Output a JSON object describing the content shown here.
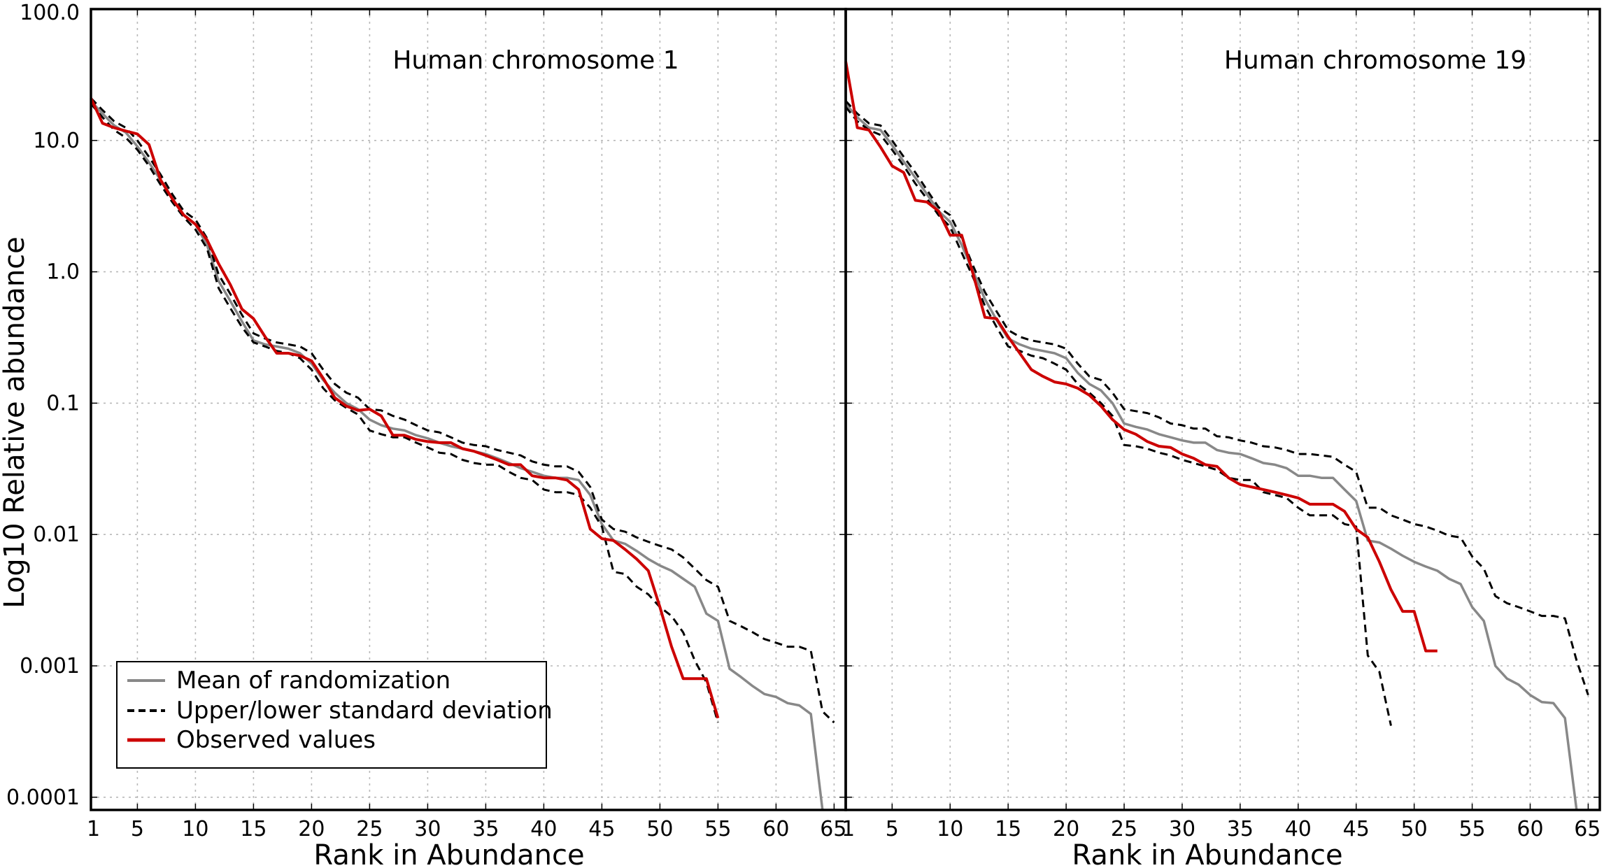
{
  "chart_data": [
    {
      "type": "line",
      "title": "Human chromosome 1",
      "xlabel": "Rank in Abundance",
      "ylabel": "Log10 Relative abundance",
      "xlim": [
        1,
        66
      ],
      "ylim": [
        8e-05,
        100
      ],
      "yscale": "log",
      "grid": true,
      "x_ticks": [
        1,
        5,
        10,
        15,
        20,
        25,
        30,
        35,
        40,
        45,
        50,
        55,
        60,
        65
      ],
      "y_ticks": [
        "0.0001",
        "0.001",
        "0.01",
        "0.1",
        "1.0",
        "10.0",
        "100.0"
      ],
      "y_tick_values": [
        0.0001,
        0.001,
        0.01,
        0.1,
        1,
        10,
        100
      ],
      "legend_position": "lower-left",
      "series": [
        {
          "name": "Mean of randomization",
          "color": "#888888",
          "style": "solid",
          "x": [
            1,
            2,
            3,
            4,
            5,
            6,
            7,
            8,
            9,
            10,
            11,
            12,
            13,
            14,
            15,
            16,
            17,
            18,
            19,
            20,
            21,
            22,
            23,
            24,
            25,
            26,
            27,
            28,
            29,
            30,
            31,
            32,
            33,
            34,
            35,
            36,
            37,
            38,
            39,
            40,
            41,
            42,
            43,
            44,
            45,
            46,
            47,
            48,
            49,
            50,
            51,
            52,
            53,
            54,
            55,
            56,
            57,
            58,
            59,
            60,
            61,
            62,
            63,
            64,
            65
          ],
          "values": [
            20,
            16,
            13,
            11.5,
            9,
            6.8,
            5,
            3.6,
            2.7,
            2.3,
            1.6,
            0.85,
            0.6,
            0.42,
            0.3,
            0.28,
            0.27,
            0.26,
            0.24,
            0.2,
            0.15,
            0.12,
            0.1,
            0.09,
            0.075,
            0.068,
            0.064,
            0.062,
            0.057,
            0.054,
            0.05,
            0.047,
            0.045,
            0.043,
            0.041,
            0.038,
            0.035,
            0.032,
            0.03,
            0.028,
            0.027,
            0.027,
            0.026,
            0.02,
            0.012,
            0.009,
            0.0085,
            0.0075,
            0.0065,
            0.0058,
            0.0053,
            0.0046,
            0.004,
            0.0025,
            0.0022,
            0.00095,
            0.00082,
            0.0007,
            0.00061,
            0.00058,
            0.00052,
            0.0005,
            0.00043,
            8e-05,
            null
          ]
        },
        {
          "name": "Upper/lower standard deviation",
          "color": "#000000",
          "style": "dashed",
          "x": [
            1,
            2,
            3,
            4,
            5,
            6,
            7,
            8,
            9,
            10,
            11,
            12,
            13,
            14,
            15,
            16,
            17,
            18,
            19,
            20,
            21,
            22,
            23,
            24,
            25,
            26,
            27,
            28,
            29,
            30,
            31,
            32,
            33,
            34,
            35,
            36,
            37,
            38,
            39,
            40,
            41,
            42,
            43,
            44,
            45,
            46,
            47,
            48,
            49,
            50,
            51,
            52,
            53,
            54,
            55,
            56,
            57,
            58,
            59,
            60,
            61,
            62,
            63,
            64,
            65
          ],
          "values": [
            21,
            17,
            14,
            12.5,
            10,
            7.5,
            5.5,
            3.9,
            2.9,
            2.5,
            1.8,
            0.95,
            0.68,
            0.47,
            0.34,
            0.31,
            0.29,
            0.28,
            0.27,
            0.24,
            0.18,
            0.14,
            0.12,
            0.11,
            0.09,
            0.088,
            0.08,
            0.075,
            0.068,
            0.062,
            0.06,
            0.055,
            0.05,
            0.048,
            0.047,
            0.044,
            0.042,
            0.04,
            0.036,
            0.034,
            0.033,
            0.033,
            0.03,
            0.023,
            0.013,
            0.011,
            0.0105,
            0.0095,
            0.0088,
            0.0082,
            0.0077,
            0.0067,
            0.0055,
            0.0045,
            0.004,
            0.0022,
            0.002,
            0.0018,
            0.0016,
            0.0015,
            0.0014,
            0.0014,
            0.0013,
            0.00045,
            0.00037
          ]
        },
        {
          "name": "",
          "color": "#000000",
          "style": "dashed",
          "x": [
            1,
            2,
            3,
            4,
            5,
            6,
            7,
            8,
            9,
            10,
            11,
            12,
            13,
            14,
            15,
            16,
            17,
            18,
            19,
            20,
            21,
            22,
            23,
            24,
            25,
            26,
            27,
            28,
            29,
            30,
            31,
            32,
            33,
            34,
            35,
            36,
            37,
            38,
            39,
            40,
            41,
            42,
            43,
            44,
            45,
            46,
            47,
            48,
            49,
            50,
            51,
            52,
            53,
            54,
            55
          ],
          "values": [
            19,
            15,
            12,
            10.5,
            8.5,
            6.4,
            4.6,
            3.4,
            2.6,
            2.1,
            1.5,
            0.75,
            0.53,
            0.38,
            0.29,
            0.27,
            0.25,
            0.24,
            0.22,
            0.18,
            0.13,
            0.105,
            0.092,
            0.082,
            0.062,
            0.058,
            0.055,
            0.055,
            0.05,
            0.046,
            0.042,
            0.041,
            0.037,
            0.035,
            0.034,
            0.034,
            0.03,
            0.027,
            0.026,
            0.022,
            0.021,
            0.021,
            0.02,
            0.016,
            0.0115,
            0.0052,
            0.005,
            0.004,
            0.0035,
            0.0028,
            0.0024,
            0.0018,
            0.0011,
            0.00075,
            0.00037
          ]
        },
        {
          "name": "Observed values",
          "color": "#cc0000",
          "style": "solid",
          "x": [
            1,
            2,
            3,
            4,
            5,
            6,
            7,
            8,
            9,
            10,
            11,
            12,
            13,
            14,
            15,
            16,
            17,
            18,
            19,
            20,
            21,
            22,
            23,
            24,
            25,
            26,
            27,
            28,
            29,
            30,
            31,
            32,
            33,
            34,
            35,
            36,
            37,
            38,
            39,
            40,
            41,
            42,
            43,
            44,
            45,
            46,
            47,
            48,
            49,
            50,
            51,
            52,
            53,
            54,
            55,
            56
          ],
          "values": [
            21,
            13.5,
            12.5,
            11.8,
            11.2,
            9.3,
            5,
            3.6,
            2.7,
            2.3,
            1.75,
            1.15,
            0.8,
            0.52,
            0.44,
            0.32,
            0.24,
            0.24,
            0.23,
            0.21,
            0.155,
            0.11,
            0.095,
            0.088,
            0.09,
            0.08,
            0.057,
            0.057,
            0.053,
            0.051,
            0.05,
            0.05,
            0.045,
            0.043,
            0.04,
            0.037,
            0.034,
            0.034,
            0.028,
            0.027,
            0.027,
            0.026,
            0.022,
            0.011,
            0.0093,
            0.009,
            0.0077,
            0.0065,
            0.0053,
            0.0028,
            0.0014,
            0.0008,
            0.0008,
            0.0008,
            0.0004,
            null
          ]
        }
      ]
    },
    {
      "type": "line",
      "title": "Human chromosome 19",
      "xlabel": "Rank in Abundance",
      "ylabel": "",
      "xlim": [
        1,
        66
      ],
      "ylim": [
        8e-05,
        100
      ],
      "yscale": "log",
      "grid": true,
      "x_ticks": [
        1,
        5,
        10,
        15,
        20,
        25,
        30,
        35,
        40,
        45,
        50,
        55,
        60,
        65
      ],
      "series": [
        {
          "name": "Mean of randomization",
          "color": "#888888",
          "style": "solid",
          "x": [
            1,
            2,
            3,
            4,
            5,
            6,
            7,
            8,
            9,
            10,
            11,
            12,
            13,
            14,
            15,
            16,
            17,
            18,
            19,
            20,
            21,
            22,
            23,
            24,
            25,
            26,
            27,
            28,
            29,
            30,
            31,
            32,
            33,
            34,
            35,
            36,
            37,
            38,
            39,
            40,
            41,
            42,
            43,
            44,
            45,
            46,
            47,
            48,
            49,
            50,
            51,
            52,
            53,
            54,
            55,
            56,
            57,
            58,
            59,
            60,
            61,
            62,
            63,
            64
          ],
          "values": [
            19,
            15,
            12.5,
            12,
            9.2,
            6.9,
            5.2,
            3.9,
            2.9,
            2.4,
            1.6,
            1,
            0.62,
            0.43,
            0.31,
            0.28,
            0.26,
            0.25,
            0.24,
            0.22,
            0.17,
            0.14,
            0.125,
            0.1,
            0.07,
            0.066,
            0.063,
            0.058,
            0.055,
            0.052,
            0.05,
            0.05,
            0.044,
            0.042,
            0.041,
            0.038,
            0.035,
            0.034,
            0.032,
            0.028,
            0.028,
            0.027,
            0.027,
            0.022,
            0.018,
            0.009,
            0.0087,
            0.0078,
            0.0069,
            0.0062,
            0.0057,
            0.0053,
            0.0046,
            0.0042,
            0.0028,
            0.0022,
            0.001,
            0.0008,
            0.00072,
            0.0006,
            0.00053,
            0.00052,
            0.0004,
            8e-05
          ]
        },
        {
          "name": "Upper/lower standard deviation",
          "color": "#000000",
          "style": "dashed",
          "x": [
            1,
            2,
            3,
            4,
            5,
            6,
            7,
            8,
            9,
            10,
            11,
            12,
            13,
            14,
            15,
            16,
            17,
            18,
            19,
            20,
            21,
            22,
            23,
            24,
            25,
            26,
            27,
            28,
            29,
            30,
            31,
            32,
            33,
            34,
            35,
            36,
            37,
            38,
            39,
            40,
            41,
            42,
            43,
            44,
            45,
            46,
            47,
            48,
            49,
            50,
            51,
            52,
            53,
            54,
            55,
            56,
            57,
            58,
            59,
            60,
            61,
            62,
            63,
            64,
            65
          ],
          "values": [
            20,
            16,
            13.5,
            13,
            10,
            7.5,
            5.7,
            4.2,
            3.1,
            2.7,
            1.8,
            1.1,
            0.7,
            0.5,
            0.36,
            0.32,
            0.3,
            0.29,
            0.28,
            0.26,
            0.2,
            0.16,
            0.15,
            0.12,
            0.09,
            0.087,
            0.084,
            0.078,
            0.07,
            0.068,
            0.064,
            0.064,
            0.056,
            0.055,
            0.052,
            0.05,
            0.047,
            0.046,
            0.044,
            0.041,
            0.041,
            0.04,
            0.039,
            0.034,
            0.03,
            0.016,
            0.016,
            0.014,
            0.013,
            0.012,
            0.0115,
            0.0107,
            0.0098,
            0.0095,
            0.0068,
            0.0055,
            0.0034,
            0.003,
            0.0028,
            0.0026,
            0.0024,
            0.0024,
            0.0023,
            0.0011,
            0.0006
          ]
        },
        {
          "name": "",
          "color": "#000000",
          "style": "dashed",
          "x": [
            1,
            2,
            3,
            4,
            5,
            6,
            7,
            8,
            9,
            10,
            11,
            12,
            13,
            14,
            15,
            16,
            17,
            18,
            19,
            20,
            21,
            22,
            23,
            24,
            25,
            26,
            27,
            28,
            29,
            30,
            31,
            32,
            33,
            34,
            35,
            36,
            37,
            38,
            39,
            40,
            41,
            42,
            43,
            44,
            45,
            46,
            47,
            48
          ],
          "values": [
            18,
            14,
            12,
            11,
            8.5,
            6.4,
            4.7,
            3.6,
            2.7,
            2.2,
            1.4,
            0.9,
            0.55,
            0.38,
            0.27,
            0.25,
            0.23,
            0.22,
            0.2,
            0.18,
            0.14,
            0.12,
            0.1,
            0.08,
            0.048,
            0.047,
            0.045,
            0.042,
            0.04,
            0.037,
            0.035,
            0.033,
            0.031,
            0.027,
            0.026,
            0.026,
            0.021,
            0.02,
            0.019,
            0.016,
            0.014,
            0.014,
            0.014,
            0.012,
            0.0115,
            0.0012,
            0.0009,
            0.00035
          ]
        },
        {
          "name": "Observed values",
          "color": "#cc0000",
          "style": "solid",
          "x": [
            1,
            2,
            3,
            4,
            5,
            6,
            7,
            8,
            9,
            10,
            11,
            12,
            13,
            14,
            15,
            16,
            17,
            18,
            19,
            20,
            21,
            22,
            23,
            24,
            25,
            26,
            27,
            28,
            29,
            30,
            31,
            32,
            33,
            34,
            35,
            36,
            37,
            38,
            39,
            40,
            41,
            42,
            43,
            44,
            45,
            46,
            47,
            48,
            49,
            50,
            51,
            52
          ],
          "values": [
            40,
            12.5,
            12,
            8.9,
            6.4,
            5.7,
            3.5,
            3.4,
            2.9,
            1.9,
            1.9,
            0.95,
            0.45,
            0.44,
            0.32,
            0.24,
            0.18,
            0.16,
            0.145,
            0.14,
            0.13,
            0.115,
            0.095,
            0.075,
            0.063,
            0.058,
            0.051,
            0.047,
            0.046,
            0.041,
            0.038,
            0.034,
            0.033,
            0.027,
            0.024,
            0.023,
            0.022,
            0.021,
            0.02,
            0.019,
            0.017,
            0.017,
            0.017,
            0.015,
            0.011,
            0.0095,
            0.0062,
            0.0038,
            0.0026,
            0.0026,
            0.0013,
            0.0013
          ]
        }
      ]
    }
  ]
}
